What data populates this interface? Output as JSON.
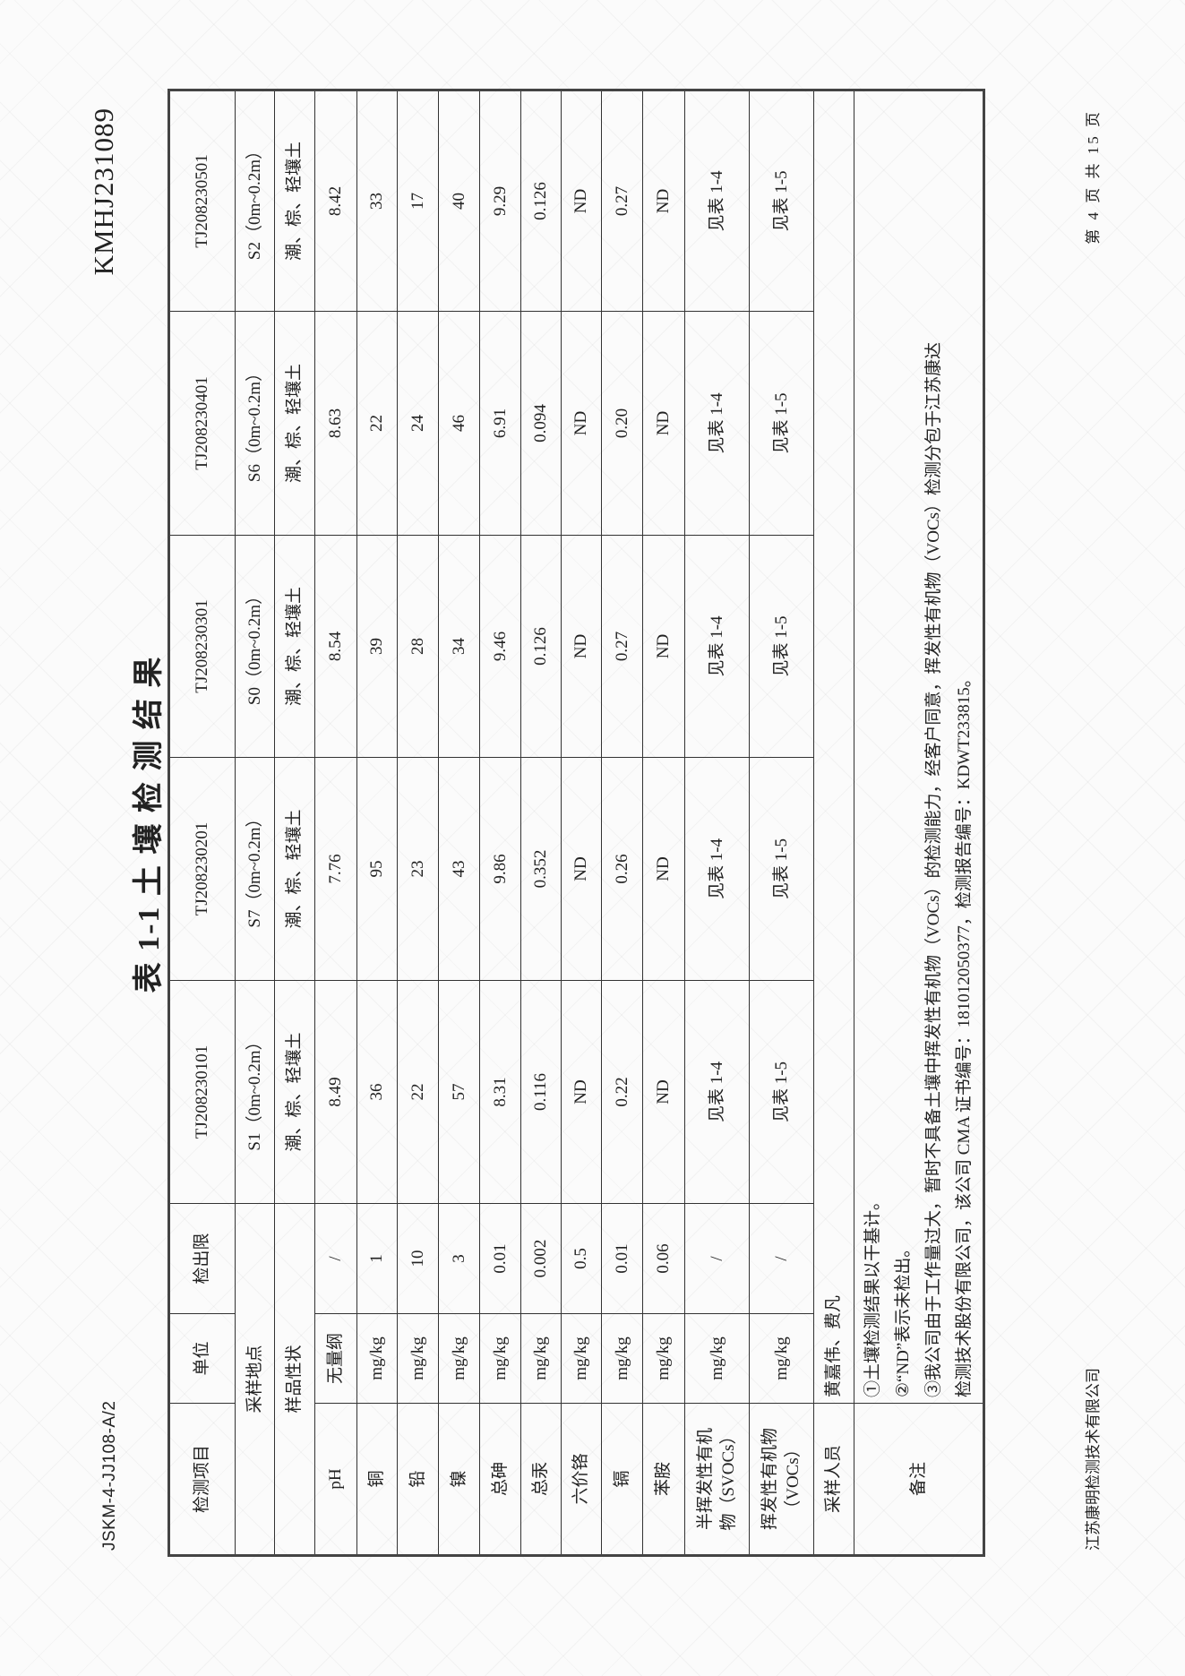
{
  "header": {
    "form_code": "JSKM-4-JJ108-A/2",
    "report_no": "KMHJ231089",
    "title": "表 1-1 土 壤 检 测 结 果"
  },
  "table": {
    "columns": [
      "检测项目",
      "单位",
      "检出限"
    ],
    "sample_ids": [
      "TJ208230101",
      "TJ208230201",
      "TJ208230301",
      "TJ208230401",
      "TJ208230501"
    ],
    "site_label": "采样地点",
    "sites": [
      "S1（0m~0.2m）",
      "S7（0m~0.2m）",
      "S0（0m~0.2m）",
      "S6（0m~0.2m）",
      "S2（0m~0.2m）"
    ],
    "state_label": "样品性状",
    "states": [
      "潮、棕、轻壤土",
      "潮、棕、轻壤土",
      "潮、棕、轻壤土",
      "潮、棕、轻壤土",
      "潮、棕、轻壤土"
    ],
    "rows": [
      {
        "item": "pH",
        "unit": "无量纲",
        "limit": "/",
        "values": [
          "8.49",
          "7.76",
          "8.54",
          "8.63",
          "8.42"
        ]
      },
      {
        "item": "铜",
        "unit": "mg/kg",
        "limit": "1",
        "values": [
          "36",
          "95",
          "39",
          "22",
          "33"
        ]
      },
      {
        "item": "铅",
        "unit": "mg/kg",
        "limit": "10",
        "values": [
          "22",
          "23",
          "28",
          "24",
          "17"
        ]
      },
      {
        "item": "镍",
        "unit": "mg/kg",
        "limit": "3",
        "values": [
          "57",
          "43",
          "34",
          "46",
          "40"
        ]
      },
      {
        "item": "总砷",
        "unit": "mg/kg",
        "limit": "0.01",
        "values": [
          "8.31",
          "9.86",
          "9.46",
          "6.91",
          "9.29"
        ]
      },
      {
        "item": "总汞",
        "unit": "mg/kg",
        "limit": "0.002",
        "values": [
          "0.116",
          "0.352",
          "0.126",
          "0.094",
          "0.126"
        ]
      },
      {
        "item": "六价铬",
        "unit": "mg/kg",
        "limit": "0.5",
        "values": [
          "ND",
          "ND",
          "ND",
          "ND",
          "ND"
        ]
      },
      {
        "item": "镉",
        "unit": "mg/kg",
        "limit": "0.01",
        "values": [
          "0.22",
          "0.26",
          "0.27",
          "0.20",
          "0.27"
        ]
      },
      {
        "item": "苯胺",
        "unit": "mg/kg",
        "limit": "0.06",
        "values": [
          "ND",
          "ND",
          "ND",
          "ND",
          "ND"
        ]
      },
      {
        "item": "半挥发性有机\n物（SVOCs）",
        "unit": "mg/kg",
        "limit": "/",
        "values": [
          "见表 1-4",
          "见表 1-4",
          "见表 1-4",
          "见表 1-4",
          "见表 1-4"
        ]
      },
      {
        "item": "挥发性有机物\n（VOCs）",
        "unit": "mg/kg",
        "limit": "/",
        "values": [
          "见表 1-5",
          "见表 1-5",
          "见表 1-5",
          "见表 1-5",
          "见表 1-5"
        ]
      }
    ],
    "sampler_label": "采样人员",
    "samplers": "黄嘉伟、费凡",
    "remarks_label": "备注",
    "remarks": [
      "①土壤检测结果以干基计。",
      "②“ND”表示未检出。",
      "③我公司由于工作量过大，暂时不具备土壤中挥发性有机物（VOCs）的检测能力，经客户同意，挥发性有机物（VOCs）检测分包于江苏康达",
      "检测技术股份有限公司，该公司 CMA 证书编号：181012050377，检测报告编号：KDWT233815。"
    ]
  },
  "footer": {
    "company": "江苏康明检测技术有限公司",
    "page": "第 4 页 共 15 页"
  }
}
